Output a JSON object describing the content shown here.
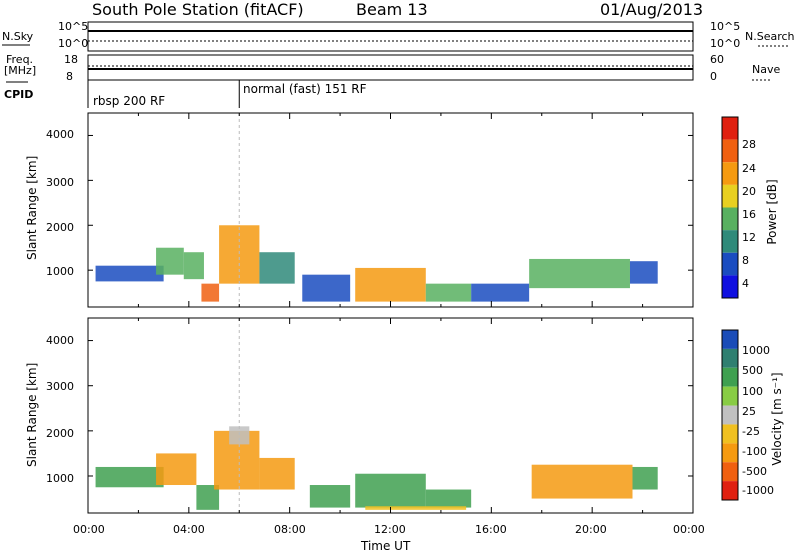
{
  "header": {
    "station": "South Pole Station (fitACF)",
    "beam": "Beam 13",
    "date": "01/Aug/2013"
  },
  "status_panels": {
    "nsky_label": "N.Sky",
    "nsearch_label": "N.Search",
    "left_ticks_top": [
      "10^5",
      "10^0"
    ],
    "right_ticks_top": [
      "10^5",
      "10^0"
    ],
    "freq_label_line1": "Freq.",
    "freq_label_line2": "[MHz]",
    "freq_ticks": [
      "18",
      "8"
    ],
    "nave_label": "Nave",
    "nave_ticks": [
      "60",
      "0"
    ],
    "cpid_label": "CPID",
    "cpid_segments": [
      {
        "label": "rbsp 200 RF",
        "start_hour": 0
      },
      {
        "label": "normal (fast) 151 RF",
        "start_hour": 6
      }
    ]
  },
  "axes": {
    "ylabel": "Slant Range [km]",
    "xlabel": "Time UT",
    "y_ticks": [
      "4000",
      "3000",
      "2000",
      "1000"
    ],
    "x_ticks": [
      "00:00",
      "04:00",
      "08:00",
      "12:00",
      "16:00",
      "20:00",
      "00:00"
    ]
  },
  "colorbars": {
    "power": {
      "label": "Power [dB]",
      "ticks": [
        "28",
        "24",
        "20",
        "16",
        "12",
        "8",
        "4"
      ],
      "colors": [
        "#1010e0",
        "#1a4cc0",
        "#2f8a7a",
        "#58b060",
        "#e8d020",
        "#f59a10",
        "#f06010",
        "#e02010"
      ]
    },
    "velocity": {
      "label": "Velocity [m s⁻¹]",
      "ticks": [
        "1000",
        "500",
        "100",
        "25",
        "-25",
        "-100",
        "-500",
        "-1000"
      ],
      "colors": [
        "#1a4cb8",
        "#2f7f70",
        "#3fa050",
        "#88cc44",
        "#c0c0c0",
        "#f0c020",
        "#f59a10",
        "#f06010",
        "#e02010"
      ]
    }
  },
  "chart_data": [
    {
      "type": "heatmap",
      "title": "",
      "xlabel": "Time UT",
      "ylabel": "Slant Range [km]",
      "xlim": [
        0,
        24
      ],
      "ylim": [
        180,
        4500
      ],
      "colorbar_label": "Power [dB]",
      "colorbar_range": [
        0,
        32
      ],
      "regions": [
        {
          "x_start": 0.3,
          "x_end": 3.0,
          "y_start": 750,
          "y_end": 1100,
          "value": 6
        },
        {
          "x_start": 2.7,
          "x_end": 3.8,
          "y_start": 900,
          "y_end": 1500,
          "value": 14
        },
        {
          "x_start": 3.8,
          "x_end": 4.6,
          "y_start": 800,
          "y_end": 1400,
          "value": 12
        },
        {
          "x_start": 4.5,
          "x_end": 5.2,
          "y_start": 300,
          "y_end": 700,
          "value": 24
        },
        {
          "x_start": 5.2,
          "x_end": 6.8,
          "y_start": 700,
          "y_end": 2000,
          "value": 20
        },
        {
          "x_start": 6.8,
          "x_end": 8.2,
          "y_start": 700,
          "y_end": 1400,
          "value": 10
        },
        {
          "x_start": 8.5,
          "x_end": 10.4,
          "y_start": 300,
          "y_end": 900,
          "value": 5
        },
        {
          "x_start": 10.6,
          "x_end": 13.4,
          "y_start": 300,
          "y_end": 1050,
          "value": 22
        },
        {
          "x_start": 13.4,
          "x_end": 15.2,
          "y_start": 300,
          "y_end": 700,
          "value": 12
        },
        {
          "x_start": 15.2,
          "x_end": 17.5,
          "y_start": 300,
          "y_end": 700,
          "value": 5
        },
        {
          "x_start": 17.5,
          "x_end": 21.5,
          "y_start": 600,
          "y_end": 1250,
          "value": 12
        },
        {
          "x_start": 21.5,
          "x_end": 22.6,
          "y_start": 700,
          "y_end": 1200,
          "value": 6
        }
      ]
    },
    {
      "type": "heatmap",
      "title": "",
      "xlabel": "Time UT",
      "ylabel": "Slant Range [km]",
      "xlim": [
        0,
        24
      ],
      "ylim": [
        180,
        4500
      ],
      "colorbar_label": "Velocity [m s⁻¹]",
      "colorbar_range": [
        -1000,
        1000
      ],
      "regions": [
        {
          "x_start": 0.3,
          "x_end": 3.0,
          "y_start": 750,
          "y_end": 1200,
          "value": 100
        },
        {
          "x_start": 2.7,
          "x_end": 4.3,
          "y_start": 800,
          "y_end": 1500,
          "value": -300
        },
        {
          "x_start": 4.3,
          "x_end": 5.2,
          "y_start": 250,
          "y_end": 800,
          "value": 200
        },
        {
          "x_start": 5.0,
          "x_end": 6.8,
          "y_start": 700,
          "y_end": 2000,
          "value": -300
        },
        {
          "x_start": 5.6,
          "x_end": 6.4,
          "y_start": 1700,
          "y_end": 2100,
          "value": 0
        },
        {
          "x_start": 6.8,
          "x_end": 8.2,
          "y_start": 700,
          "y_end": 1400,
          "value": -200
        },
        {
          "x_start": 8.8,
          "x_end": 10.4,
          "y_start": 300,
          "y_end": 800,
          "value": 150
        },
        {
          "x_start": 10.6,
          "x_end": 13.4,
          "y_start": 300,
          "y_end": 1050,
          "value": 300
        },
        {
          "x_start": 13.4,
          "x_end": 15.2,
          "y_start": 300,
          "y_end": 700,
          "value": 200
        },
        {
          "x_start": 11.0,
          "x_end": 15.0,
          "y_start": 250,
          "y_end": 330,
          "value": -80
        },
        {
          "x_start": 17.6,
          "x_end": 21.6,
          "y_start": 500,
          "y_end": 1250,
          "value": -300
        },
        {
          "x_start": 21.6,
          "x_end": 22.6,
          "y_start": 700,
          "y_end": 1200,
          "value": 100
        }
      ]
    }
  ]
}
